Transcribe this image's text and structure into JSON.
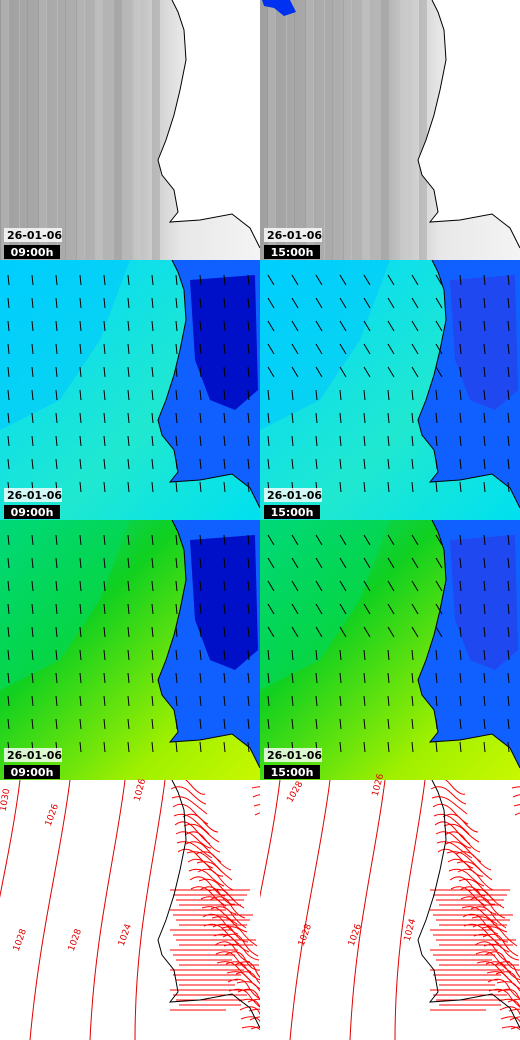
{
  "panels": [
    {
      "date": "26-01-06",
      "time": "09:00h"
    },
    {
      "date": "26-01-06",
      "time": "15:00h"
    },
    {
      "date": "26-01-06",
      "time": "09:00h"
    },
    {
      "date": "26-01-06",
      "time": "15:00h"
    },
    {
      "date": "26-01-06",
      "time": "09:00h"
    },
    {
      "date": "26-01-06",
      "time": "15:00h"
    }
  ],
  "isobars": {
    "left": [
      "1030",
      "1026",
      "1026",
      "1028",
      "1028",
      "1024"
    ],
    "right": [
      "1028",
      "1026",
      "1028",
      "1026",
      "1024"
    ]
  }
}
